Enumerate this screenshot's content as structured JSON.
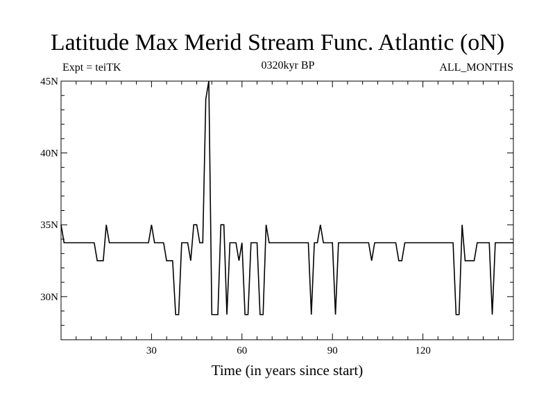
{
  "header": {
    "title": "Latitude Max Merid Stream Func. Atlantic (oN)",
    "left_note": "Expt = teiTK",
    "center_note": "0320kyr BP",
    "right_note": "ALL_MONTHS"
  },
  "chart_data": {
    "type": "line",
    "title": "Latitude Max Merid Stream Func. Atlantic (oN)",
    "xlabel": "Time (in years since start)",
    "ylabel": "",
    "xlim": [
      0,
      150
    ],
    "ylim": [
      27,
      45
    ],
    "x_ticks": [
      30,
      60,
      90,
      120
    ],
    "x_tick_labels": [
      "30",
      "60",
      "90",
      "120"
    ],
    "y_ticks": [
      30,
      35,
      40,
      45
    ],
    "y_tick_labels": [
      "30N",
      "35N",
      "40N",
      "45N"
    ],
    "grid": false,
    "legend": "none",
    "color": "#000000",
    "series": [
      {
        "x": [
          0,
          1,
          2,
          3,
          4,
          5,
          6,
          7,
          8,
          9,
          10,
          11,
          12,
          13,
          14,
          15,
          16,
          17,
          18,
          19,
          20,
          21,
          22,
          23,
          24,
          25,
          26,
          27,
          28,
          29,
          30,
          31,
          32,
          33,
          34,
          35,
          36,
          37,
          38,
          39,
          40,
          41,
          42,
          43,
          44,
          45,
          46,
          47,
          48,
          49,
          50,
          51,
          52,
          53,
          54,
          55,
          56,
          57,
          58,
          59,
          60,
          61,
          62,
          63,
          64,
          65,
          66,
          67,
          68,
          69,
          70,
          71,
          72,
          73,
          74,
          75,
          76,
          77,
          78,
          79,
          80,
          81,
          82,
          83,
          84,
          85,
          86,
          87,
          88,
          89,
          90,
          91,
          92,
          93,
          94,
          95,
          96,
          97,
          98,
          99,
          100,
          101,
          102,
          103,
          104,
          105,
          106,
          107,
          108,
          109,
          110,
          111,
          112,
          113,
          114,
          115,
          116,
          117,
          118,
          119,
          120,
          121,
          122,
          123,
          124,
          125,
          126,
          127,
          128,
          129,
          130,
          131,
          132,
          133,
          134,
          135,
          136,
          137,
          138,
          139,
          140,
          141,
          142,
          143,
          144,
          145,
          146,
          147,
          148,
          149,
          150
        ],
        "values": [
          35,
          33.75,
          33.75,
          33.75,
          33.75,
          33.75,
          33.75,
          33.75,
          33.75,
          33.75,
          33.75,
          33.75,
          32.5,
          32.5,
          32.5,
          35,
          33.75,
          33.75,
          33.75,
          33.75,
          33.75,
          33.75,
          33.75,
          33.75,
          33.75,
          33.75,
          33.75,
          33.75,
          33.75,
          33.75,
          35,
          33.75,
          33.75,
          33.75,
          33.75,
          32.5,
          32.5,
          32.5,
          28.75,
          28.75,
          33.75,
          33.75,
          33.75,
          32.5,
          35,
          35,
          33.75,
          33.75,
          43.75,
          45,
          28.75,
          28.75,
          28.75,
          35,
          35,
          28.75,
          33.75,
          33.75,
          33.75,
          32.5,
          33.75,
          28.75,
          28.75,
          33.75,
          33.75,
          33.75,
          28.75,
          28.75,
          35,
          33.75,
          33.75,
          33.75,
          33.75,
          33.75,
          33.75,
          33.75,
          33.75,
          33.75,
          33.75,
          33.75,
          33.75,
          33.75,
          33.75,
          28.75,
          33.75,
          33.75,
          35,
          33.75,
          33.75,
          33.75,
          33.75,
          28.75,
          33.75,
          33.75,
          33.75,
          33.75,
          33.75,
          33.75,
          33.75,
          33.75,
          33.75,
          33.75,
          33.75,
          32.5,
          33.75,
          33.75,
          33.75,
          33.75,
          33.75,
          33.75,
          33.75,
          33.75,
          32.5,
          32.5,
          33.75,
          33.75,
          33.75,
          33.75,
          33.75,
          33.75,
          33.75,
          33.75,
          33.75,
          33.75,
          33.75,
          33.75,
          33.75,
          33.75,
          33.75,
          33.75,
          33.75,
          28.75,
          28.75,
          35,
          32.5,
          32.5,
          32.5,
          32.5,
          33.75,
          33.75,
          33.75,
          33.75,
          33.75,
          28.75,
          33.75,
          33.75,
          33.75,
          33.75,
          33.75,
          33.75,
          33.75
        ]
      }
    ]
  }
}
